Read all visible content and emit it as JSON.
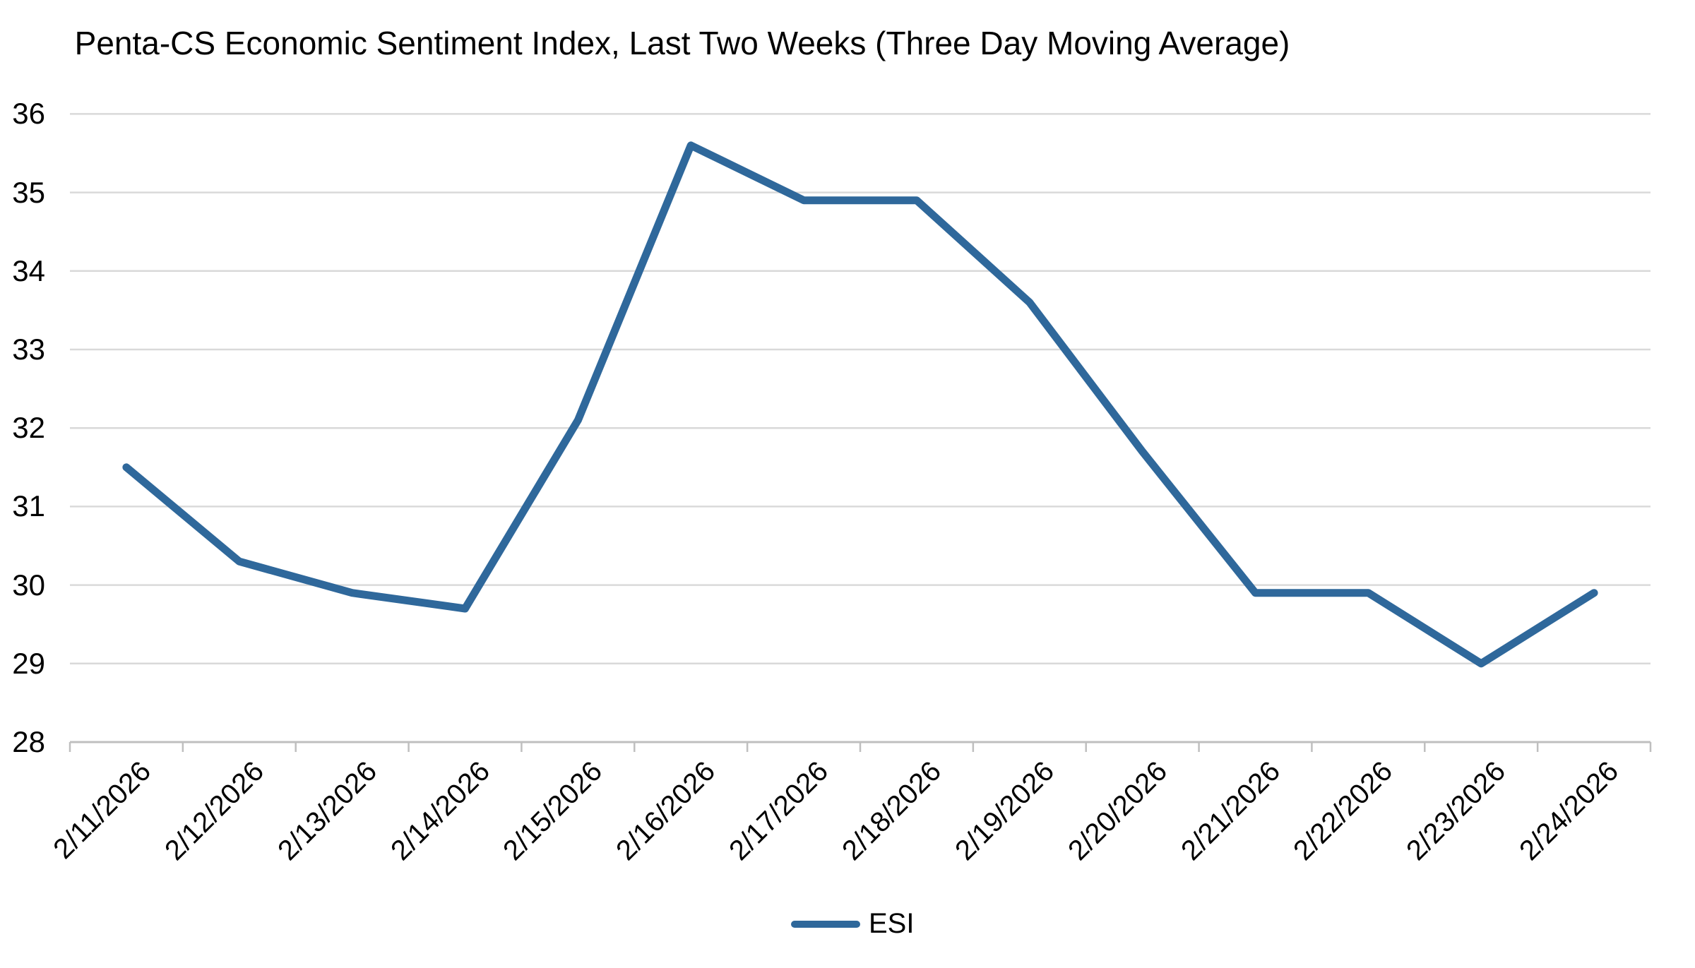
{
  "title": "Penta-CS Economic Sentiment Index, Last Two Weeks (Three Day Moving Average)",
  "legend": {
    "label": "ESI"
  },
  "colors": {
    "line": "#2F689B",
    "gridline": "#D9D9D9",
    "axis": "#BFBFBF",
    "text": "#000000",
    "background": "#FFFFFF"
  },
  "chart_data": {
    "type": "line",
    "title": "Penta-CS Economic Sentiment Index, Last Two Weeks (Three Day Moving Average)",
    "categories": [
      "2/11/2026",
      "2/12/2026",
      "2/13/2026",
      "2/14/2026",
      "2/15/2026",
      "2/16/2026",
      "2/17/2026",
      "2/18/2026",
      "2/19/2026",
      "2/20/2026",
      "2/21/2026",
      "2/22/2026",
      "2/23/2026",
      "2/24/2026"
    ],
    "series": [
      {
        "name": "ESI",
        "values": [
          31.5,
          30.3,
          29.9,
          29.7,
          32.1,
          35.6,
          34.9,
          34.9,
          33.6,
          31.7,
          29.9,
          29.9,
          29.0,
          29.9
        ]
      }
    ],
    "xlabel": "",
    "ylabel": "",
    "ylim": [
      28,
      36
    ],
    "y_ticks": [
      28,
      29,
      30,
      31,
      32,
      33,
      34,
      35,
      36
    ],
    "grid": "horizontal",
    "legend_position": "bottom-center",
    "line_color": "#2F689B"
  }
}
